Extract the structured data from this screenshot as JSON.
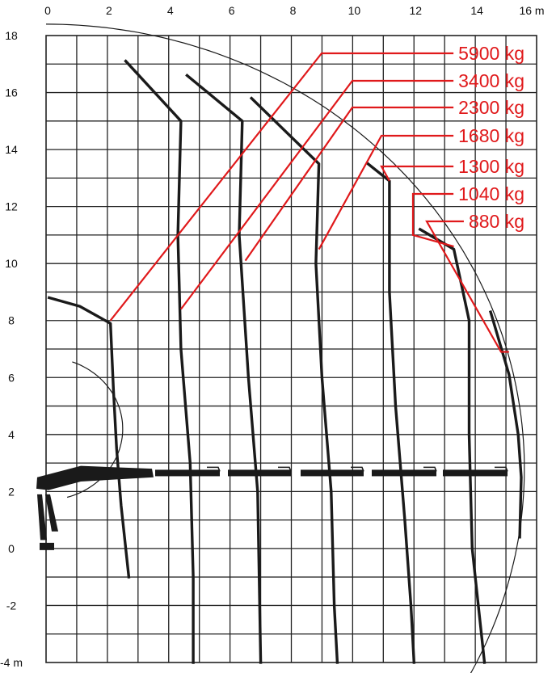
{
  "chart_data": {
    "type": "line",
    "title": "",
    "xlabel": "",
    "ylabel": "",
    "x_unit": "m",
    "y_unit": "m",
    "xlim": [
      0,
      16
    ],
    "ylim": [
      -4,
      18
    ],
    "x_ticks": [
      0,
      2,
      4,
      6,
      8,
      10,
      12,
      14,
      16
    ],
    "x_tick_labels": [
      "0",
      "2",
      "4",
      "6",
      "8",
      "10",
      "12",
      "14",
      "16 m"
    ],
    "y_ticks": [
      18,
      16,
      14,
      12,
      10,
      8,
      6,
      4,
      2,
      0,
      -2,
      -4
    ],
    "y_tick_labels": [
      "18",
      "16",
      "14",
      "12",
      "10",
      "8",
      "6",
      "4",
      "2",
      "0",
      "-2",
      "-4 m"
    ],
    "grid": true,
    "colors": {
      "curve": "#1a1a1a",
      "load": "#e0191b",
      "grid": "#222222"
    },
    "series": [
      {
        "name": "5900 kg",
        "points": [
          [
            0.1,
            8.8
          ],
          [
            1.1,
            8.5
          ],
          [
            2.1,
            7.9
          ],
          [
            2.2,
            5.5
          ],
          [
            2.3,
            3.5
          ],
          [
            2.45,
            1.5
          ],
          [
            2.7,
            -1.0
          ]
        ],
        "pointer": [
          2.1,
          8.0
        ]
      },
      {
        "name": "3400 kg",
        "points": [
          [
            2.6,
            17.1
          ],
          [
            4.4,
            15.0
          ],
          [
            4.3,
            11.0
          ],
          [
            4.4,
            7.0
          ],
          [
            4.7,
            3.0
          ],
          [
            4.8,
            -1.0
          ],
          [
            4.8,
            -4.0
          ]
        ],
        "pointer": [
          4.4,
          8.4
        ]
      },
      {
        "name": "2300 kg",
        "points": [
          [
            4.6,
            16.6
          ],
          [
            6.4,
            15.0
          ],
          [
            6.3,
            11.0
          ],
          [
            6.6,
            6.0
          ],
          [
            6.9,
            2.0
          ],
          [
            7.0,
            -4.0
          ]
        ],
        "pointer": [
          6.5,
          10.1
        ]
      },
      {
        "name": "1680 kg",
        "points": [
          [
            6.7,
            15.8
          ],
          [
            8.9,
            13.5
          ],
          [
            8.8,
            10.0
          ],
          [
            9.0,
            6.0
          ],
          [
            9.3,
            2.0
          ],
          [
            9.4,
            -2.0
          ],
          [
            9.5,
            -4.0
          ]
        ],
        "pointer": [
          8.9,
          10.5
        ]
      },
      {
        "name": "1300 kg",
        "points": [
          [
            10.5,
            13.5
          ],
          [
            11.2,
            12.9
          ],
          [
            11.2,
            9.0
          ],
          [
            11.4,
            5.0
          ],
          [
            11.7,
            1.0
          ],
          [
            11.9,
            -2.0
          ],
          [
            12.0,
            -4.0
          ]
        ],
        "pointer": [
          11.2,
          12.9
        ]
      },
      {
        "name": "1040 kg",
        "points": [
          [
            12.2,
            11.2
          ],
          [
            13.3,
            10.5
          ],
          [
            13.8,
            8.0
          ],
          [
            13.8,
            4.0
          ],
          [
            13.9,
            0.0
          ],
          [
            14.1,
            -2.0
          ],
          [
            14.3,
            -4.0
          ]
        ],
        "pointer": [
          13.3,
          10.6
        ]
      },
      {
        "name": "880 kg",
        "points": [
          [
            14.5,
            8.3
          ],
          [
            15.1,
            6.1
          ],
          [
            15.4,
            4.0
          ],
          [
            15.5,
            2.5
          ],
          [
            15.45,
            0.4
          ]
        ],
        "pointer": [
          15.1,
          6.9
        ]
      }
    ],
    "reach_envelope": {
      "center": [
        0,
        2.8
      ],
      "radius": 15.6,
      "start_angle_deg": 90,
      "end_angle_deg": -29
    },
    "inner_arc": {
      "center": [
        0,
        4.2
      ],
      "radius": 2.5,
      "start_angle_deg": 70,
      "end_angle_deg": -74
    }
  }
}
